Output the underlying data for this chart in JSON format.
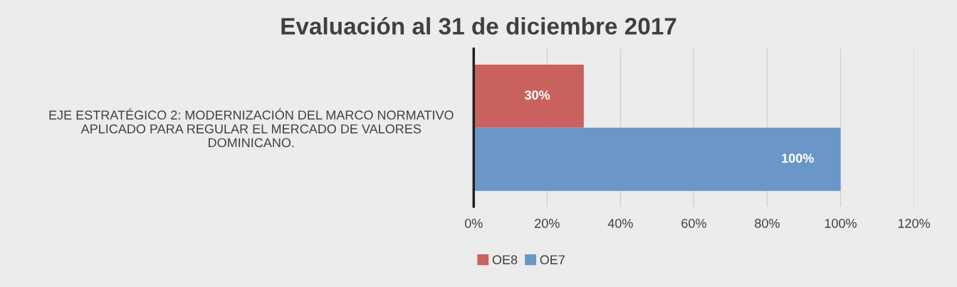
{
  "chart_data": {
    "type": "bar",
    "orientation": "horizontal",
    "title": "Evaluación al 31 de diciembre 2017",
    "categories": [
      "EJE ESTRATÉGICO 2: MODERNIZACIÓN DEL MARCO NORMATIVO\nAPLICADO PARA REGULAR EL MERCADO DE VALORES\nDOMINICANO."
    ],
    "series": [
      {
        "name": "OE8",
        "color": "#c9625f",
        "values": [
          30
        ],
        "value_labels": [
          "30%"
        ]
      },
      {
        "name": "OE7",
        "color": "#6a96c8",
        "values": [
          100
        ],
        "value_labels": [
          "100%"
        ]
      }
    ],
    "xlim": [
      0,
      120
    ],
    "xticks": [
      {
        "value": 0,
        "label": "0%"
      },
      {
        "value": 20,
        "label": "20%"
      },
      {
        "value": 40,
        "label": "40%"
      },
      {
        "value": 60,
        "label": "60%"
      },
      {
        "value": 80,
        "label": "80%"
      },
      {
        "value": 100,
        "label": "100%"
      },
      {
        "value": 120,
        "label": "120%"
      }
    ],
    "grid": "x",
    "legend": "bottom"
  }
}
